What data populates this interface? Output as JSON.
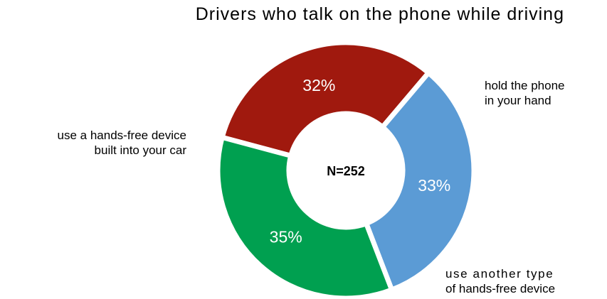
{
  "chart_data": {
    "type": "pie",
    "variant": "donut",
    "title": "Drivers who talk on the phone while driving",
    "center_label": "N=252",
    "slices": [
      {
        "category": [
          "hold the phone",
          "in your hand"
        ],
        "value": 32,
        "value_label": "32%",
        "color": "#a0190e"
      },
      {
        "category": [
          "use another type",
          "of hands-free device"
        ],
        "value": 33,
        "value_label": "33%",
        "color": "#5b9bd5"
      },
      {
        "category": [
          "use a hands-free device",
          "built into your car"
        ],
        "value": 35,
        "value_label": "35%",
        "color": "#00a050"
      }
    ],
    "legend": "none"
  }
}
